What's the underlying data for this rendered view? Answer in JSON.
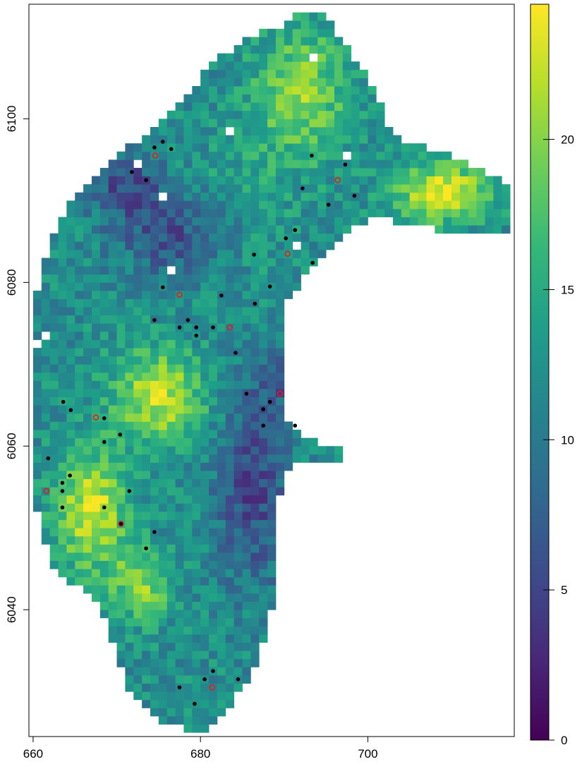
{
  "chart_data": {
    "type": "heatmap",
    "title": "",
    "xlabel": "",
    "ylabel": "",
    "xlim": [
      659.5,
      717.5
    ],
    "ylim": [
      6024.5,
      6114
    ],
    "x_ticks": [
      "660",
      "680",
      "700"
    ],
    "y_ticks": [
      "6040",
      "6060",
      "6080",
      "6100"
    ],
    "colorbar": {
      "palette": "viridis",
      "range": [
        0,
        24.5
      ],
      "ticks": [
        "0",
        "5",
        "10",
        "15",
        "20"
      ],
      "colors": [
        "#440154",
        "#482878",
        "#3e4a89",
        "#31688e",
        "#26828e",
        "#1f9e89",
        "#35b779",
        "#6ece58",
        "#b5de2b",
        "#fde725"
      ]
    },
    "raster": {
      "cell_size": 1,
      "x_range": [
        660,
        718
      ],
      "y_range": [
        6025,
        6113
      ],
      "description_of_field": "raster of values ranging roughly 3 to 24 over the irregular region"
    },
    "points_black": [
      [
        674.5,
        6096.5
      ],
      [
        675.5,
        6097.2
      ],
      [
        676.5,
        6096.3
      ],
      [
        671.8,
        6093.5
      ],
      [
        673.5,
        6092.5
      ],
      [
        693.3,
        6095.5
      ],
      [
        697.3,
        6094.4
      ],
      [
        692.2,
        6091.5
      ],
      [
        698.4,
        6090.6
      ],
      [
        695.3,
        6089.5
      ],
      [
        691.3,
        6086.4
      ],
      [
        690.2,
        6085.4
      ],
      [
        686.4,
        6083.4
      ],
      [
        693.4,
        6082.4
      ],
      [
        688.3,
        6079.5
      ],
      [
        675.5,
        6079.4
      ],
      [
        682.5,
        6078.4
      ],
      [
        686.5,
        6077.4
      ],
      [
        674.5,
        6075.4
      ],
      [
        677.5,
        6074.5
      ],
      [
        678.5,
        6075.4
      ],
      [
        679.5,
        6074.5
      ],
      [
        679.5,
        6073.5
      ],
      [
        681.5,
        6074.5
      ],
      [
        684.2,
        6071.4
      ],
      [
        663.6,
        6065.4
      ],
      [
        664.5,
        6064.4
      ],
      [
        668.5,
        6063.4
      ],
      [
        685.5,
        6066.4
      ],
      [
        688.3,
        6065.4
      ],
      [
        687.5,
        6064.5
      ],
      [
        687.5,
        6062.5
      ],
      [
        691.3,
        6062.5
      ],
      [
        670.4,
        6061.4
      ],
      [
        668.5,
        6060.5
      ],
      [
        661.8,
        6058.5
      ],
      [
        664.4,
        6056.4
      ],
      [
        663.5,
        6055.5
      ],
      [
        663.5,
        6054.5
      ],
      [
        671.5,
        6054.5
      ],
      [
        663.5,
        6052.5
      ],
      [
        668.5,
        6052.5
      ],
      [
        670.5,
        6050.5
      ],
      [
        674.5,
        6049.5
      ],
      [
        673.5,
        6047.5
      ],
      [
        681.5,
        6032.5
      ],
      [
        680.5,
        6031.5
      ],
      [
        684.5,
        6031.5
      ],
      [
        677.5,
        6030.5
      ],
      [
        679.3,
        6028.5
      ]
    ],
    "points_red": [
      [
        674.6,
        6095.5
      ],
      [
        696.4,
        6092.5
      ],
      [
        690.4,
        6083.5
      ],
      [
        677.5,
        6078.5
      ],
      [
        683.5,
        6074.5
      ],
      [
        689.5,
        6066.4
      ],
      [
        667.5,
        6063.5
      ],
      [
        661.6,
        6054.5
      ],
      [
        670.5,
        6050.5
      ],
      [
        681.4,
        6030.5
      ]
    ]
  }
}
